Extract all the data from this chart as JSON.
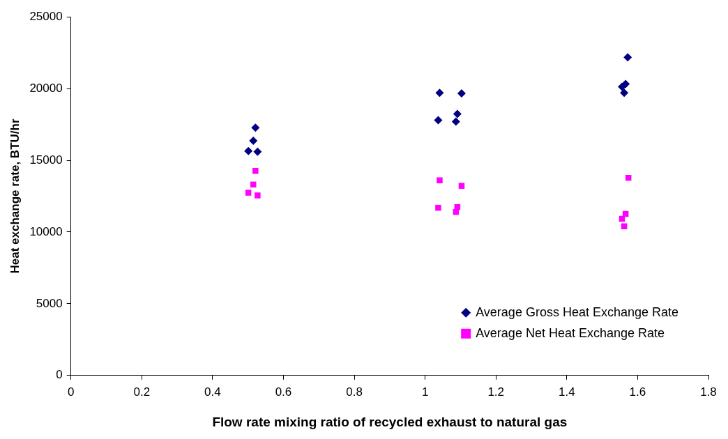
{
  "chart_data": {
    "type": "scatter",
    "xlabel": "Flow rate mixing ratio of recycled exhaust to natural gas",
    "ylabel": "Heat exchange rate, BTU/hr",
    "xlim": [
      0,
      1.8
    ],
    "xticks": [
      0,
      0.2,
      0.4,
      0.6,
      0.8,
      1,
      1.2,
      1.4,
      1.6,
      1.8
    ],
    "ylim": [
      0,
      25000
    ],
    "yticks": [
      0,
      5000,
      10000,
      15000,
      20000,
      25000
    ],
    "grid": false,
    "legend": "bottom right",
    "series": [
      {
        "name": "Average Gross Heat Exchange Rate",
        "color": "#000080",
        "marker": "diamond",
        "x": [
          0.521,
          0.515,
          0.501,
          0.527,
          1.041,
          1.103,
          1.037,
          1.091,
          1.087,
          1.572,
          1.566,
          1.556,
          1.562
        ],
        "values": [
          17270,
          16360,
          15650,
          15600,
          19700,
          19660,
          17800,
          18230,
          17700,
          22180,
          20320,
          20130,
          19700
        ]
      },
      {
        "name": "Average Net Heat Exchange Rate",
        "color": "#ff00ff",
        "marker": "square",
        "x": [
          0.521,
          0.515,
          0.501,
          0.527,
          1.041,
          1.103,
          1.037,
          1.091,
          1.087,
          1.574,
          1.566,
          1.556,
          1.562
        ],
        "values": [
          14260,
          13310,
          12740,
          12550,
          13600,
          13220,
          11690,
          11740,
          11400,
          13780,
          11260,
          10920,
          10400
        ]
      }
    ]
  }
}
